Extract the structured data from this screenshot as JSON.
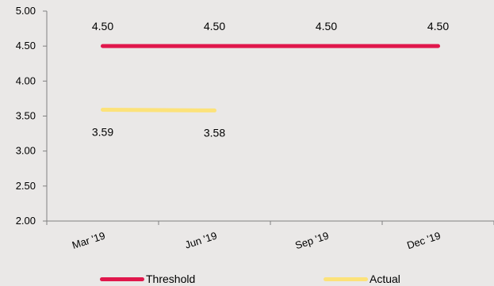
{
  "chart_data": {
    "type": "line",
    "categories": [
      "Mar '19",
      "Jun '19",
      "Sep '19",
      "Dec '19"
    ],
    "yticks": [
      "2.00",
      "2.50",
      "3.00",
      "3.50",
      "4.00",
      "4.50",
      "5.00"
    ],
    "ylim": [
      2.0,
      5.0
    ],
    "grid": false,
    "legend_position": "bottom",
    "series": [
      {
        "name": "Threshold",
        "color": "#e0174c",
        "values": [
          4.5,
          4.5,
          4.5,
          4.5
        ],
        "labels": [
          "4.50",
          "4.50",
          "4.50",
          "4.50"
        ],
        "label_position": "above"
      },
      {
        "name": "Actual",
        "color": "#fce27a",
        "values": [
          3.59,
          3.58,
          null,
          null
        ],
        "labels": [
          "3.59",
          "3.58",
          "",
          ""
        ],
        "label_position": "below"
      }
    ]
  }
}
